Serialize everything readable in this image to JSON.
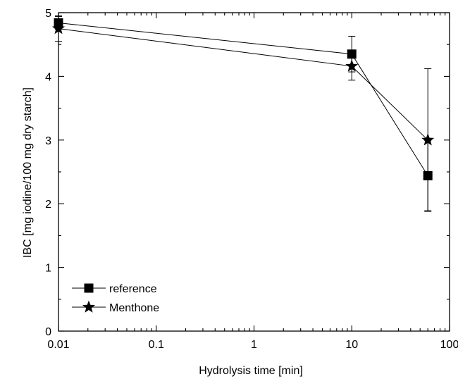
{
  "chart_data": {
    "type": "scatter",
    "xlabel": "Hydrolysis time [min]",
    "ylabel": "IBC [mg iodine/100 mg dry starch]",
    "xscale": "log",
    "xlim": [
      0.01,
      100
    ],
    "ylim": [
      0,
      5
    ],
    "x_ticks": [
      0.01,
      0.1,
      1,
      10,
      100
    ],
    "x_tick_labels": [
      "0.01",
      "0.1",
      "1",
      "10",
      "100"
    ],
    "y_ticks": [
      0,
      1,
      2,
      3,
      4,
      5
    ],
    "y_tick_labels": [
      "0",
      "1",
      "2",
      "3",
      "4",
      "5"
    ],
    "legend_position": "bottom-left",
    "grid": false,
    "series": [
      {
        "name": "reference",
        "marker": "square",
        "x": [
          0.01,
          10,
          60
        ],
        "y": [
          4.84,
          4.35,
          2.44
        ],
        "yerr": [
          0.1,
          0.28,
          0.55
        ]
      },
      {
        "name": "Menthone",
        "marker": "star",
        "x": [
          0.01,
          10,
          60
        ],
        "y": [
          4.75,
          4.16,
          3.0
        ],
        "yerr": [
          0.2,
          0.22,
          1.12
        ]
      }
    ]
  }
}
